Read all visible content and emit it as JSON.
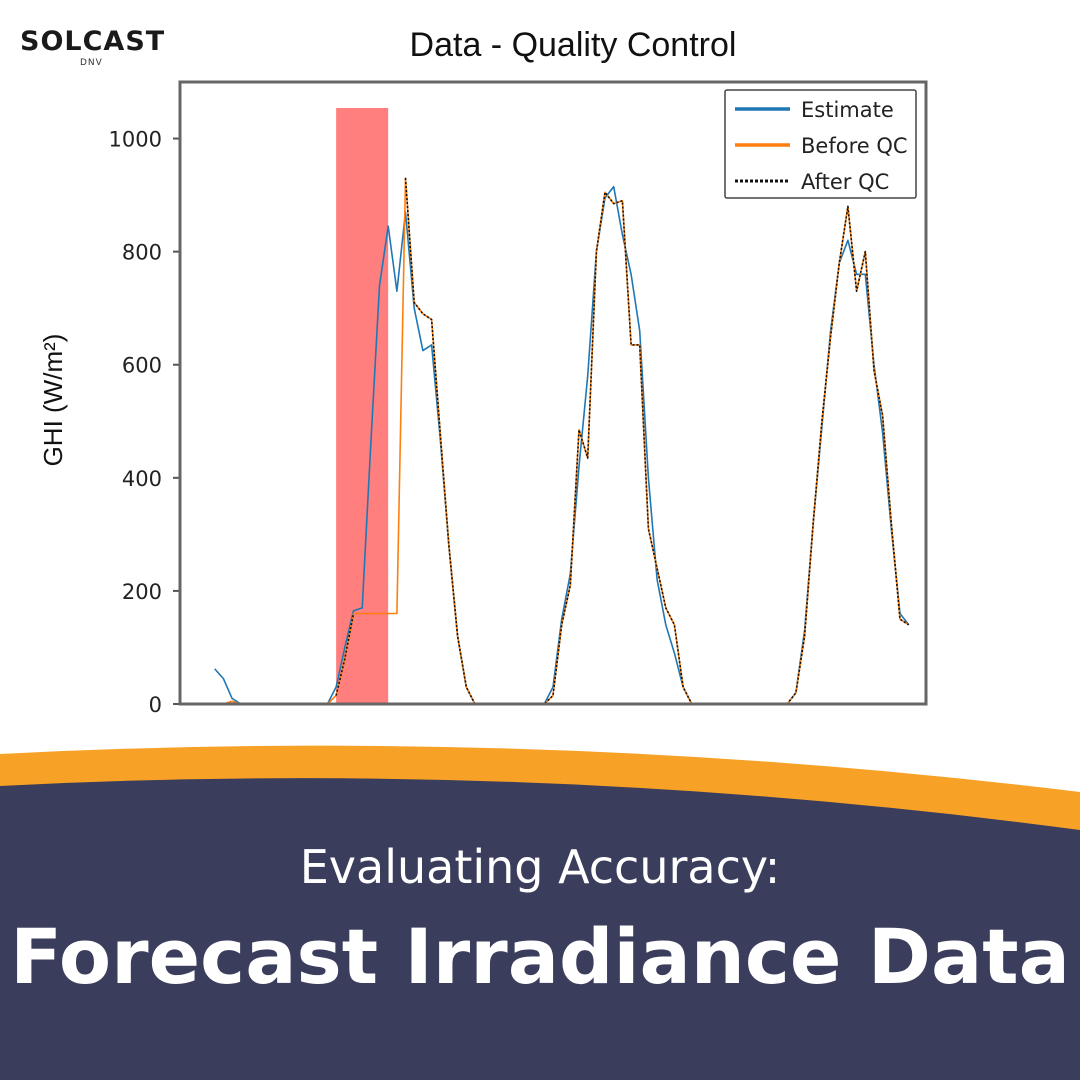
{
  "brand": {
    "logo_text": "SOLCAST",
    "logo_sub": "DNV"
  },
  "banner": {
    "subtitle": "Evaluating Accuracy:",
    "title": "Forecast Irradiance Data"
  },
  "colors": {
    "estimate": "#1f77b4",
    "before_qc": "#ff7f0e",
    "after_qc": "#111111",
    "highlight": "#ff7f7f",
    "banner_orange": "#f7a126",
    "banner_dark": "#3a3d5c"
  },
  "chart_data": {
    "type": "line",
    "title": "Data - Quality Control",
    "xlabel": "",
    "ylabel": "GHI (W/m²)",
    "ylim": [
      0,
      1100
    ],
    "yticks": [
      0,
      200,
      400,
      600,
      800,
      1000
    ],
    "x": [
      0,
      1,
      2,
      3,
      4,
      5,
      6,
      7,
      8,
      9,
      10,
      11,
      12,
      13,
      14,
      15,
      16,
      17,
      18,
      19,
      20,
      21,
      22,
      23,
      24,
      25,
      26,
      27,
      28,
      29,
      30,
      31,
      32,
      33,
      34,
      35,
      36,
      37,
      38,
      39,
      40,
      41,
      42,
      43,
      44,
      45,
      46,
      47,
      48,
      49,
      50,
      51,
      52,
      53,
      54,
      55,
      56,
      57,
      58,
      59,
      60,
      61,
      62,
      63,
      64,
      65,
      66,
      67,
      68,
      69,
      70,
      71,
      72,
      73,
      74,
      75,
      76,
      77,
      78,
      79,
      80
    ],
    "xlim": [
      -4,
      82
    ],
    "highlight_range": [
      14,
      20
    ],
    "legend": [
      "Estimate",
      "Before QC",
      "After QC"
    ],
    "legend_position": "top-right",
    "series": [
      {
        "name": "Estimate",
        "values": [
          62,
          45,
          10,
          0,
          0,
          0,
          0,
          0,
          0,
          0,
          0,
          0,
          0,
          0,
          30,
          100,
          165,
          170,
          460,
          740,
          845,
          730,
          870,
          700,
          625,
          635,
          470,
          280,
          120,
          30,
          0,
          0,
          0,
          0,
          0,
          0,
          0,
          0,
          0,
          30,
          150,
          230,
          420,
          580,
          800,
          895,
          915,
          830,
          760,
          660,
          400,
          220,
          140,
          90,
          30,
          0,
          0,
          0,
          0,
          0,
          0,
          0,
          0,
          0,
          0,
          0,
          0,
          20,
          130,
          320,
          490,
          660,
          780,
          820,
          760,
          760,
          600,
          480,
          310,
          160,
          140
        ]
      },
      {
        "name": "Before QC",
        "values": [
          0,
          0,
          5,
          0,
          0,
          0,
          0,
          0,
          0,
          0,
          0,
          0,
          0,
          0,
          15,
          80,
          160,
          160,
          160,
          160,
          160,
          160,
          930,
          710,
          690,
          680,
          480,
          280,
          120,
          30,
          0,
          0,
          0,
          0,
          0,
          0,
          0,
          0,
          0,
          15,
          140,
          210,
          485,
          435,
          800,
          905,
          885,
          890,
          635,
          635,
          310,
          240,
          170,
          140,
          30,
          0,
          0,
          0,
          0,
          0,
          0,
          0,
          0,
          0,
          0,
          0,
          0,
          20,
          120,
          320,
          500,
          650,
          780,
          880,
          730,
          800,
          590,
          510,
          320,
          150,
          140
        ]
      },
      {
        "name": "After QC",
        "values": [
          null,
          null,
          null,
          null,
          null,
          null,
          null,
          null,
          null,
          null,
          null,
          null,
          null,
          null,
          15,
          80,
          160,
          null,
          null,
          null,
          null,
          null,
          930,
          710,
          690,
          680,
          480,
          280,
          120,
          30,
          0,
          0,
          0,
          0,
          0,
          0,
          0,
          0,
          0,
          15,
          140,
          210,
          485,
          435,
          800,
          905,
          885,
          890,
          635,
          635,
          310,
          240,
          170,
          140,
          30,
          0,
          0,
          0,
          0,
          0,
          0,
          0,
          0,
          0,
          0,
          0,
          0,
          20,
          120,
          320,
          500,
          650,
          780,
          880,
          730,
          800,
          590,
          510,
          320,
          150,
          140
        ]
      }
    ]
  }
}
